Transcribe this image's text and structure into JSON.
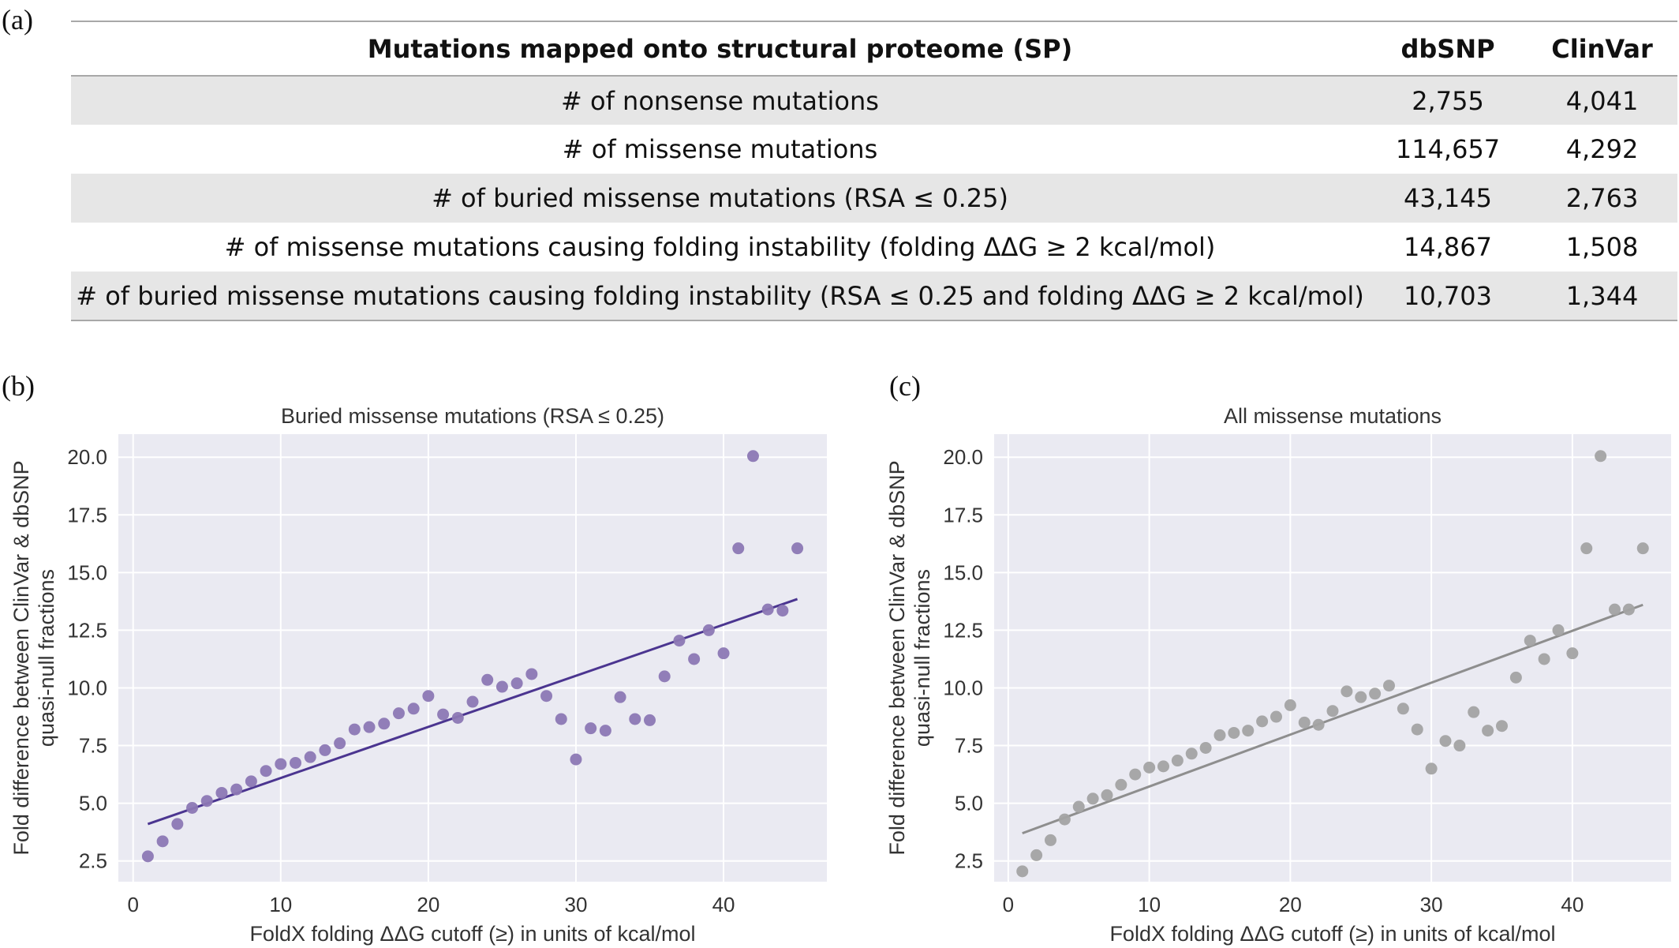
{
  "panels": {
    "a": "(a)",
    "b": "(b)",
    "c": "(c)"
  },
  "table": {
    "headers": [
      "Mutations mapped onto structural proteome (SP)",
      "dbSNP",
      "ClinVar"
    ],
    "rows": [
      [
        "# of nonsense mutations",
        "2,755",
        "4,041"
      ],
      [
        "# of missense mutations",
        "114,657",
        "4,292"
      ],
      [
        "# of buried missense mutations (RSA ≤ 0.25)",
        "43,145",
        "2,763"
      ],
      [
        "# of missense mutations causing folding instability (folding ΔΔG ≥ 2 kcal/mol)",
        "14,867",
        "1,508"
      ],
      [
        "# of buried missense mutations causing folding instability (RSA ≤ 0.25 and folding ΔΔG ≥ 2 kcal/mol)",
        "10,703",
        "1,344"
      ]
    ]
  },
  "chart_data": [
    {
      "type": "scatter",
      "title": "Buried missense mutations (RSA ≤ 0.25)",
      "xlabel": "FoldX folding ΔΔG cutoff (≥) in units of kcal/mol",
      "ylabel_lines": [
        "Fold difference between ClinVar & dbSNP",
        "quasi-null fractions"
      ],
      "xlim": [
        -1,
        47
      ],
      "ylim": [
        1.6,
        21
      ],
      "xticks": [
        0,
        10,
        20,
        30,
        40
      ],
      "yticks": [
        2.5,
        5.0,
        7.5,
        10.0,
        12.5,
        15.0,
        17.5,
        20.0
      ],
      "grid": true,
      "point_color": "#8c78b4",
      "line_color": "#4b3590",
      "x": [
        1,
        2,
        3,
        4,
        5,
        6,
        7,
        8,
        9,
        10,
        11,
        12,
        13,
        14,
        15,
        16,
        17,
        18,
        19,
        20,
        21,
        22,
        23,
        24,
        25,
        26,
        27,
        28,
        29,
        30,
        31,
        32,
        33,
        34,
        35,
        36,
        37,
        38,
        39,
        40,
        41,
        42,
        43,
        44,
        45
      ],
      "y": [
        2.7,
        3.35,
        4.1,
        4.8,
        5.1,
        5.45,
        5.6,
        5.95,
        6.4,
        6.7,
        6.75,
        7.0,
        7.3,
        7.6,
        8.2,
        8.3,
        8.45,
        8.9,
        9.1,
        9.65,
        8.85,
        8.7,
        9.4,
        10.35,
        10.05,
        10.2,
        10.6,
        9.65,
        8.65,
        6.9,
        8.25,
        8.15,
        9.6,
        8.65,
        8.6,
        10.5,
        12.05,
        11.25,
        12.5,
        11.5,
        16.05,
        20.05,
        13.4,
        13.35,
        16.05
      ],
      "fit": {
        "x": [
          1,
          45
        ],
        "y": [
          4.1,
          13.85
        ]
      }
    },
    {
      "type": "scatter",
      "title": "All missense mutations",
      "xlabel": "FoldX folding ΔΔG cutoff (≥) in units of kcal/mol",
      "ylabel_lines": [
        "Fold difference between ClinVar & dbSNP",
        "quasi-null fractions"
      ],
      "xlim": [
        -1,
        47
      ],
      "ylim": [
        1.6,
        21
      ],
      "xticks": [
        0,
        10,
        20,
        30,
        40
      ],
      "yticks": [
        2.5,
        5.0,
        7.5,
        10.0,
        12.5,
        15.0,
        17.5,
        20.0
      ],
      "grid": true,
      "point_color": "#a3a3a3",
      "line_color": "#8e8e8e",
      "x": [
        1,
        2,
        3,
        4,
        5,
        6,
        7,
        8,
        9,
        10,
        11,
        12,
        13,
        14,
        15,
        16,
        17,
        18,
        19,
        20,
        21,
        22,
        23,
        24,
        25,
        26,
        27,
        28,
        29,
        30,
        31,
        32,
        33,
        34,
        35,
        36,
        37,
        38,
        39,
        40,
        41,
        42,
        43,
        44,
        45
      ],
      "y": [
        2.05,
        2.75,
        3.4,
        4.3,
        4.85,
        5.2,
        5.35,
        5.8,
        6.25,
        6.55,
        6.6,
        6.85,
        7.15,
        7.4,
        7.95,
        8.05,
        8.15,
        8.55,
        8.75,
        9.25,
        8.5,
        8.4,
        9.0,
        9.85,
        9.6,
        9.75,
        10.1,
        9.1,
        8.2,
        6.5,
        7.7,
        7.5,
        8.95,
        8.15,
        8.35,
        10.45,
        12.05,
        11.25,
        12.5,
        11.5,
        16.05,
        20.05,
        13.4,
        13.4,
        16.05
      ],
      "fit": {
        "x": [
          1,
          45
        ],
        "y": [
          3.7,
          13.6
        ]
      }
    }
  ]
}
